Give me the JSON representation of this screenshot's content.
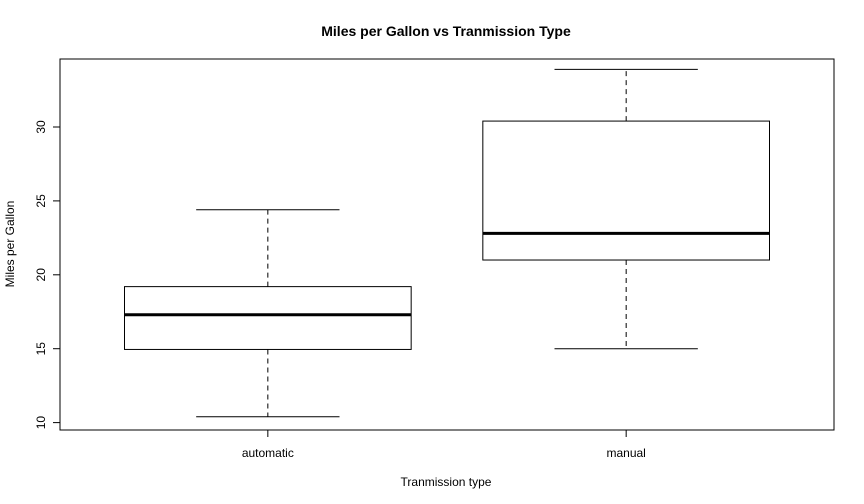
{
  "chart_data": {
    "type": "boxplot",
    "title": "Miles per Gallon vs Tranmission Type",
    "xlabel": "Tranmission type",
    "ylabel": "Miles per Gallon",
    "ylim": [
      9.5,
      34.6
    ],
    "yticks": [
      "10",
      "15",
      "20",
      "25",
      "30"
    ],
    "categories": [
      "automatic",
      "manual"
    ],
    "boxes": [
      {
        "category": "automatic",
        "whisker_low": 10.4,
        "q1": 14.95,
        "median": 17.3,
        "q3": 19.2,
        "whisker_high": 24.4
      },
      {
        "category": "manual",
        "whisker_low": 15.0,
        "q1": 21.0,
        "median": 22.8,
        "q3": 30.4,
        "whisker_high": 33.9
      }
    ],
    "grid": false,
    "legend": "none"
  }
}
